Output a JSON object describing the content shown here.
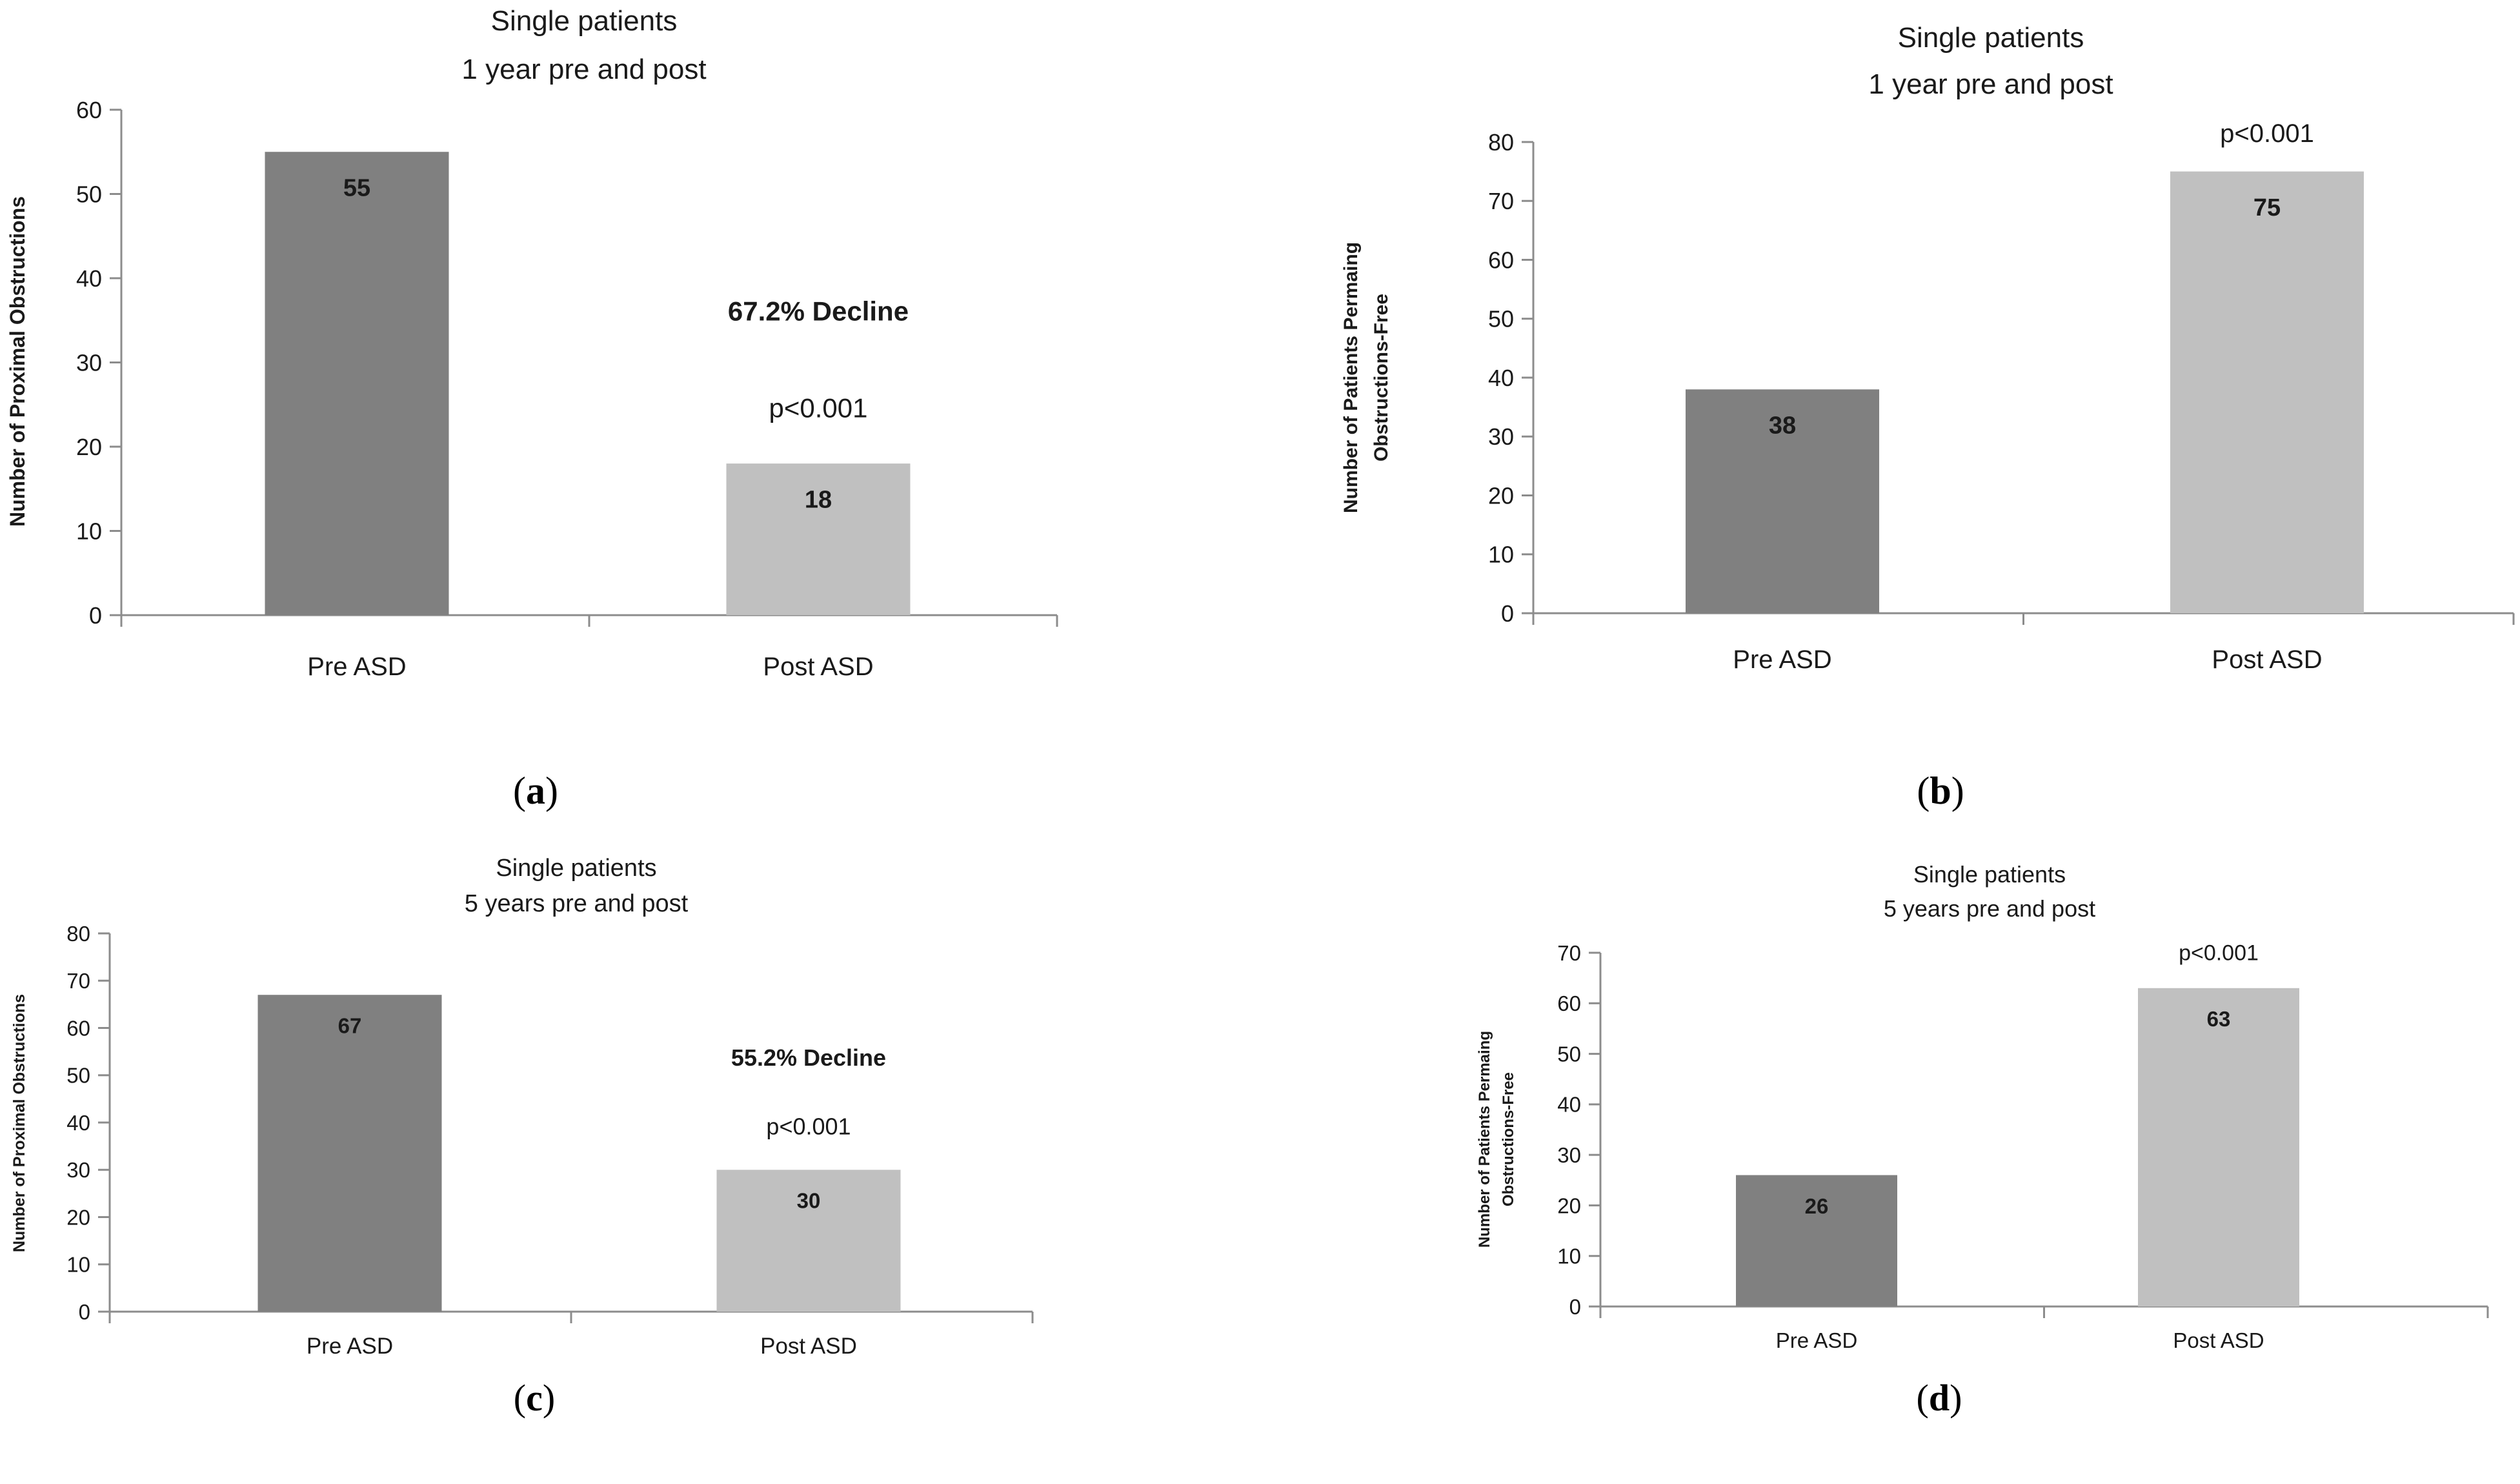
{
  "chart_data": [
    {
      "panel": "(a)",
      "type": "bar",
      "title_lines": [
        "Single patients",
        "1 year pre and post"
      ],
      "ylabel_lines": [
        "Number of Proximal Obstructions"
      ],
      "xlabel": "",
      "categories": [
        "Pre ASD",
        "Post ASD"
      ],
      "values": [
        55,
        18
      ],
      "data_labels": [
        "55",
        "18"
      ],
      "bar_colors": [
        "#808080",
        "#c0c0c0"
      ],
      "ylim": [
        0,
        60
      ],
      "yticks": [
        0,
        10,
        20,
        30,
        40,
        50,
        60
      ],
      "annotations": [
        {
          "text": "67.2% Decline",
          "bold": true,
          "category": 1,
          "y": 35
        },
        {
          "text": "p<0.001",
          "bold": false,
          "category": 1,
          "y": 23.5
        }
      ]
    },
    {
      "panel": "(b)",
      "type": "bar",
      "title_lines": [
        "Single patients",
        "1 year pre and post"
      ],
      "ylabel_lines": [
        "Number of Patients Permaing",
        "Obstructions-Free"
      ],
      "xlabel": "",
      "categories": [
        "Pre ASD",
        "Post ASD"
      ],
      "values": [
        38,
        75
      ],
      "data_labels": [
        "38",
        "75"
      ],
      "bar_colors": [
        "#808080",
        "#c0c0c0"
      ],
      "ylim": [
        0,
        80
      ],
      "yticks": [
        0,
        10,
        20,
        30,
        40,
        50,
        60,
        70,
        80
      ],
      "annotations": [
        {
          "text": "p<0.001",
          "bold": false,
          "category": 1,
          "y": 80
        }
      ]
    },
    {
      "panel": "(c)",
      "type": "bar",
      "title_lines": [
        "Single patients",
        "5 years pre and post"
      ],
      "ylabel_lines": [
        "Number of Proximal Obstructions"
      ],
      "xlabel": "",
      "categories": [
        "Pre ASD",
        "Post ASD"
      ],
      "values": [
        67,
        30
      ],
      "data_labels": [
        "67",
        "30"
      ],
      "bar_colors": [
        "#808080",
        "#c0c0c0"
      ],
      "ylim": [
        0,
        80
      ],
      "yticks": [
        0,
        10,
        20,
        30,
        40,
        50,
        60,
        70,
        80
      ],
      "annotations": [
        {
          "text": "55.2% Decline",
          "bold": true,
          "category": 1,
          "y": 52
        },
        {
          "text": "p<0.001",
          "bold": false,
          "category": 1,
          "y": 37.5
        }
      ]
    },
    {
      "panel": "(d)",
      "type": "bar",
      "title_lines": [
        "Single patients",
        "5 years pre and post"
      ],
      "ylabel_lines": [
        "Number of Patients Permaing",
        "Obstructions-Free"
      ],
      "xlabel": "",
      "categories": [
        "Pre ASD",
        "Post ASD"
      ],
      "values": [
        26,
        63
      ],
      "data_labels": [
        "26",
        "63"
      ],
      "bar_colors": [
        "#808080",
        "#c0c0c0"
      ],
      "ylim": [
        0,
        70
      ],
      "yticks": [
        0,
        10,
        20,
        30,
        40,
        50,
        60,
        70
      ],
      "annotations": [
        {
          "text": "p<0.001",
          "bold": false,
          "category": 1,
          "y": 68.5
        }
      ]
    }
  ]
}
